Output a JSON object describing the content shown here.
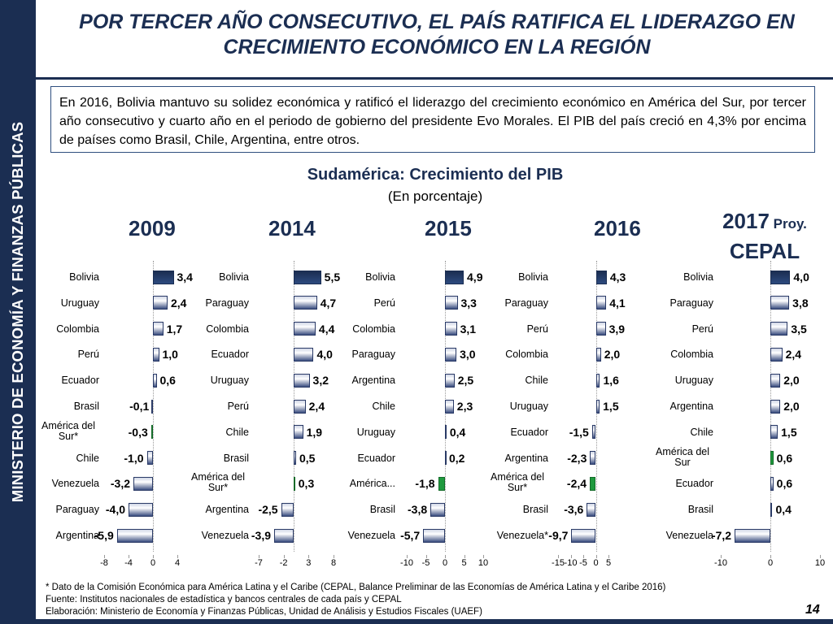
{
  "sidebar": {
    "text": "MINISTERIO DE ECONOMÍA Y FINANZAS PÚBLICAS"
  },
  "title": {
    "line1": "POR TERCER AÑO CONSECUTIVO, EL PAÍS RATIFICA EL LIDERAZGO EN",
    "line2": "CRECIMIENTO ECONÓMICO EN LA REGIÓN"
  },
  "intro": "En 2016, Bolivia mantuvo su solidez económica y ratificó el liderazgo del crecimiento económico en América del Sur, por tercer año consecutivo y cuarto año en el periodo de gobierno del presidente Evo Morales. El PIB del país creció en 4,3% por encima de países como Brasil, Chile, Argentina, entre otros.",
  "chart_header": {
    "title": "Sudamérica: Crecimiento del PIB",
    "subtitle": "(En porcentaje)"
  },
  "colors": {
    "navy": "#1b2e52",
    "green": "#1f9a3e"
  },
  "chart_data": [
    {
      "type": "bar",
      "orientation": "horizontal",
      "title": "2009",
      "categories": [
        "Bolivia",
        "Uruguay",
        "Colombia",
        "Perú",
        "Ecuador",
        "Brasil",
        "América del Sur*",
        "Chile",
        "Venezuela",
        "Paraguay",
        "Argentina"
      ],
      "labels": [
        "3,4",
        "2,4",
        "1,7",
        "1,0",
        "0,6",
        "-0,1",
        "-0,3",
        "-1,0",
        "-3,2",
        "-4,0",
        "-5,9"
      ],
      "values": [
        3.4,
        2.4,
        1.7,
        1.0,
        0.6,
        -0.1,
        -0.3,
        -1.0,
        -3.2,
        -4.0,
        -5.9
      ],
      "xlim": [
        -8,
        4
      ],
      "ticks": [
        "-8",
        "-4",
        "0",
        "4"
      ],
      "tick_values": [
        -8,
        -4,
        0,
        4
      ],
      "highlight": "América del Sur*"
    },
    {
      "type": "bar",
      "orientation": "horizontal",
      "title": "2014",
      "categories": [
        "Bolivia",
        "Paraguay",
        "Colombia",
        "Ecuador",
        "Uruguay",
        "Perú",
        "Chile",
        "Brasil",
        "América del Sur*",
        "Argentina",
        "Venezuela"
      ],
      "labels": [
        "5,5",
        "4,7",
        "4,4",
        "4,0",
        "3,2",
        "2,4",
        "1,9",
        "0,5",
        "0,3",
        "-2,5",
        "-3,9"
      ],
      "values": [
        5.5,
        4.7,
        4.4,
        4.0,
        3.2,
        2.4,
        1.9,
        0.5,
        0.3,
        -2.5,
        -3.9
      ],
      "xlim": [
        -7,
        8
      ],
      "ticks": [
        "-7",
        "-2",
        "3",
        "8"
      ],
      "tick_values": [
        -7,
        -2,
        3,
        8
      ],
      "highlight": "América del Sur*"
    },
    {
      "type": "bar",
      "orientation": "horizontal",
      "title": "2015",
      "categories": [
        "Bolivia",
        "Perú",
        "Colombia",
        "Paraguay",
        "Argentina",
        "Chile",
        "Uruguay",
        "Ecuador",
        "América...",
        "Brasil",
        "Venezuela"
      ],
      "labels": [
        "4,9",
        "3,3",
        "3,1",
        "3,0",
        "2,5",
        "2,3",
        "0,4",
        "0,2",
        "-1,8",
        "-3,8",
        "-5,7"
      ],
      "values": [
        4.9,
        3.3,
        3.1,
        3.0,
        2.5,
        2.3,
        0.4,
        0.2,
        -1.8,
        -3.8,
        -5.7
      ],
      "xlim": [
        -10,
        10
      ],
      "ticks": [
        "-10",
        "-5",
        "0",
        "5",
        "10"
      ],
      "tick_values": [
        -10,
        -5,
        0,
        5,
        10
      ],
      "highlight": "América..."
    },
    {
      "type": "bar",
      "orientation": "horizontal",
      "title": "2016",
      "categories": [
        "Bolivia",
        "Paraguay",
        "Perú",
        "Colombia",
        "Chile",
        "Uruguay",
        "Ecuador",
        "Argentina",
        "América del Sur*",
        "Brasil",
        "Venezuela*"
      ],
      "labels": [
        "4,3",
        "4,1",
        "3,9",
        "2,0",
        "1,6",
        "1,5",
        "-1,5",
        "-2,3",
        "-2,4",
        "-3,6",
        "-9,7"
      ],
      "values": [
        4.3,
        4.1,
        3.9,
        2.0,
        1.6,
        1.5,
        -1.5,
        -2.3,
        -2.4,
        -3.6,
        -9.7
      ],
      "xlim": [
        -15,
        5
      ],
      "ticks": [
        "-15",
        "-10",
        "-5",
        "0",
        "5"
      ],
      "tick_values": [
        -15,
        -10,
        -5,
        0,
        5
      ],
      "highlight": "América del Sur*"
    },
    {
      "type": "bar",
      "orientation": "horizontal",
      "title": "2017",
      "title_suffix": "Proy.",
      "title_line2": "CEPAL",
      "categories": [
        "Bolivia",
        "Paraguay",
        "Perú",
        "Colombia",
        "Uruguay",
        "Argentina",
        "Chile",
        "América del Sur",
        "Ecuador",
        "Brasil",
        "Venezuela"
      ],
      "labels": [
        "4,0",
        "3,8",
        "3,5",
        "2,4",
        "2,0",
        "2,0",
        "1,5",
        "0,6",
        "0,6",
        "0,4",
        "-7,2"
      ],
      "values": [
        4.0,
        3.8,
        3.5,
        2.4,
        2.0,
        2.0,
        1.5,
        0.6,
        0.6,
        0.4,
        -7.2
      ],
      "xlim": [
        -10,
        10
      ],
      "ticks": [
        "-10",
        "0",
        "10"
      ],
      "tick_values": [
        -10,
        0,
        10
      ],
      "highlight": "América del Sur"
    }
  ],
  "footnotes": {
    "line1": "* Dato de la Comisión Económica para América Latina y el Caribe (CEPAL, Balance Preliminar de las Economías de América Latina y el Caribe 2016)",
    "line2": "Fuente: Institutos nacionales de estadística y bancos centrales de cada país y CEPAL",
    "line3": "Elaboración: Ministerio de Economía y Finanzas Públicas, Unidad de Análisis y Estudios Fiscales (UAEF)"
  },
  "page_number": "14"
}
